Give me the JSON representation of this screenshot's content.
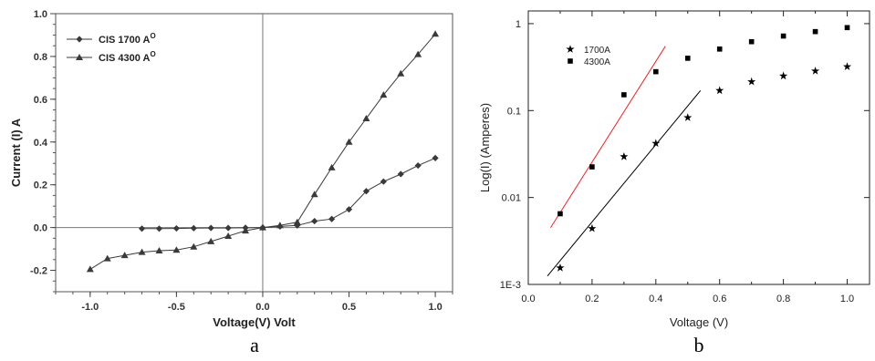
{
  "chart_data": [
    {
      "type": "line",
      "panel_label": "a",
      "title": "",
      "xlabel": "Voltage(V) Volt",
      "ylabel": "Current (I) A",
      "xlim": [
        -1.2,
        1.1
      ],
      "ylim": [
        -0.3,
        1.0
      ],
      "xticks": [
        -1.0,
        -0.5,
        0.0,
        0.5,
        1.0
      ],
      "xtick_labels": [
        "-1.0",
        "-0.5",
        "0.0",
        "0.5",
        "1.0"
      ],
      "yticks": [
        -0.2,
        0.0,
        0.2,
        0.4,
        0.6,
        0.8,
        1.0
      ],
      "ytick_labels": [
        "-0.2",
        "0.0",
        "0.2",
        "0.4",
        "0.6",
        "0.8",
        "1.0"
      ],
      "grid": false,
      "zero_lines": true,
      "legend_position": "top-left",
      "series": [
        {
          "name": "CIS 1700 A",
          "name_superscript": "O",
          "marker": "diamond",
          "color": "#3a3a3a",
          "x": [
            -0.7,
            -0.6,
            -0.5,
            -0.4,
            -0.3,
            -0.2,
            -0.1,
            0.0,
            0.1,
            0.2,
            0.3,
            0.4,
            0.5,
            0.6,
            0.7,
            0.8,
            0.9,
            1.0
          ],
          "y": [
            -0.005,
            -0.005,
            -0.004,
            -0.003,
            -0.002,
            -0.002,
            -0.001,
            0.0,
            0.005,
            0.01,
            0.03,
            0.04,
            0.085,
            0.17,
            0.215,
            0.25,
            0.29,
            0.325
          ]
        },
        {
          "name": "CIS 4300 A",
          "name_superscript": "O",
          "marker": "triangle",
          "color": "#3a3a3a",
          "x": [
            -1.0,
            -0.9,
            -0.8,
            -0.7,
            -0.6,
            -0.5,
            -0.4,
            -0.3,
            -0.2,
            -0.1,
            0.0,
            0.1,
            0.2,
            0.3,
            0.4,
            0.5,
            0.6,
            0.7,
            0.8,
            0.9,
            1.0
          ],
          "y": [
            -0.195,
            -0.145,
            -0.13,
            -0.115,
            -0.108,
            -0.105,
            -0.09,
            -0.065,
            -0.04,
            -0.015,
            0.0,
            0.01,
            0.025,
            0.155,
            0.28,
            0.4,
            0.51,
            0.62,
            0.72,
            0.81,
            0.905
          ]
        }
      ]
    },
    {
      "type": "scatter",
      "panel_label": "b",
      "title": "",
      "xlabel": "Voltage (V)",
      "ylabel": "Log(I) (Amperes)",
      "xlim": [
        0.0,
        1.07
      ],
      "ylim": [
        0.001,
        1.4
      ],
      "yscale": "log",
      "xticks": [
        0.0,
        0.2,
        0.4,
        0.6,
        0.8,
        1.0
      ],
      "xtick_labels": [
        "0.0",
        "0.2",
        "0.4",
        "0.6",
        "0.8",
        "1.0"
      ],
      "yticks": [
        0.001,
        0.01,
        0.1,
        1
      ],
      "ytick_labels": [
        "1E-3",
        "0.01",
        "0.1",
        "1"
      ],
      "grid": false,
      "legend_position": "top-left",
      "series": [
        {
          "name": "1700A",
          "marker": "star",
          "color": "#000000",
          "x": [
            0.1,
            0.2,
            0.3,
            0.4,
            0.5,
            0.6,
            0.7,
            0.8,
            0.9,
            1.0
          ],
          "y": [
            0.00155,
            0.0044,
            0.0295,
            0.042,
            0.083,
            0.17,
            0.215,
            0.25,
            0.285,
            0.32
          ]
        },
        {
          "name": "4300A",
          "marker": "square",
          "color": "#000000",
          "x": [
            0.1,
            0.2,
            0.3,
            0.4,
            0.5,
            0.6,
            0.7,
            0.8,
            0.9,
            1.0
          ],
          "y": [
            0.0065,
            0.0225,
            0.152,
            0.28,
            0.4,
            0.51,
            0.62,
            0.72,
            0.81,
            0.9
          ]
        }
      ],
      "fit_lines": [
        {
          "color": "#ee2222",
          "x": [
            0.07,
            0.43
          ],
          "y": [
            0.0045,
            0.55
          ]
        },
        {
          "color": "#000000",
          "x": [
            0.06,
            0.54
          ],
          "y": [
            0.00125,
            0.17
          ]
        }
      ]
    }
  ]
}
